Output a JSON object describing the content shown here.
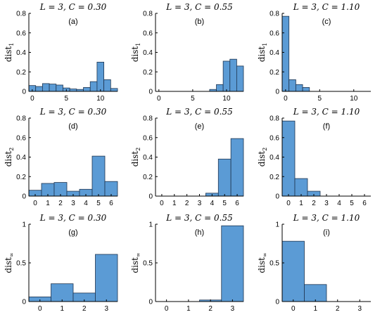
{
  "chart_data": [
    {
      "type": "bar",
      "panel_label": "(a)",
      "title": "L = 3, C = 0.30",
      "ylabel_main": "dist",
      "ylabel_sub": "1",
      "xlim": [
        -0.5,
        12.5
      ],
      "ylim": [
        0,
        0.8
      ],
      "xticks": [
        0,
        5,
        10
      ],
      "yticks": [
        0,
        0.2,
        0.4,
        0.6,
        0.8
      ],
      "x": [
        0,
        1,
        2,
        3,
        4,
        5,
        6,
        7,
        8,
        9,
        10,
        11,
        12
      ],
      "values": [
        0.06,
        0.05,
        0.08,
        0.075,
        0.065,
        0.035,
        0.025,
        0.02,
        0.04,
        0.1,
        0.3,
        0.12,
        0.03
      ]
    },
    {
      "type": "bar",
      "panel_label": "(b)",
      "title": "L = 3, C = 0.55",
      "ylabel_main": "dist",
      "ylabel_sub": "1",
      "xlim": [
        -0.5,
        12.5
      ],
      "ylim": [
        0,
        0.8
      ],
      "xticks": [
        0,
        5,
        10
      ],
      "yticks": [
        0,
        0.2,
        0.4,
        0.6,
        0.8
      ],
      "x": [
        0,
        1,
        2,
        3,
        4,
        5,
        6,
        7,
        8,
        9,
        10,
        11,
        12
      ],
      "values": [
        0,
        0,
        0,
        0,
        0,
        0,
        0,
        0,
        0.02,
        0.07,
        0.31,
        0.33,
        0.26
      ]
    },
    {
      "type": "bar",
      "panel_label": "(c)",
      "title": "L = 3, C = 1.10",
      "ylabel_main": "dist",
      "ylabel_sub": "1",
      "xlim": [
        -0.5,
        12.5
      ],
      "ylim": [
        0,
        0.8
      ],
      "xticks": [
        0,
        5,
        10
      ],
      "yticks": [
        0,
        0.2,
        0.4,
        0.6,
        0.8
      ],
      "x": [
        0,
        1,
        2,
        3,
        4,
        5,
        6,
        7,
        8,
        9,
        10,
        11,
        12
      ],
      "values": [
        0.77,
        0.12,
        0.07,
        0.04,
        0,
        0,
        0,
        0,
        0,
        0,
        0,
        0,
        0
      ]
    },
    {
      "type": "bar",
      "panel_label": "(d)",
      "title": "L = 3, C = 0.30",
      "ylabel_main": "dist",
      "ylabel_sub": "2",
      "xlim": [
        -0.5,
        6.5
      ],
      "ylim": [
        0,
        0.8
      ],
      "xticks": [
        0,
        1,
        2,
        3,
        4,
        5,
        6
      ],
      "yticks": [
        0,
        0.2,
        0.4,
        0.6,
        0.8
      ],
      "x": [
        0,
        1,
        2,
        3,
        4,
        5,
        6
      ],
      "values": [
        0.06,
        0.13,
        0.14,
        0.05,
        0.07,
        0.41,
        0.15
      ]
    },
    {
      "type": "bar",
      "panel_label": "(e)",
      "title": "L = 3, C = 0.55",
      "ylabel_main": "dist",
      "ylabel_sub": "2",
      "xlim": [
        -0.5,
        6.5
      ],
      "ylim": [
        0,
        0.8
      ],
      "xticks": [
        0,
        1,
        2,
        3,
        4,
        5,
        6
      ],
      "yticks": [
        0,
        0.2,
        0.4,
        0.6,
        0.8
      ],
      "x": [
        0,
        1,
        2,
        3,
        4,
        5,
        6
      ],
      "values": [
        0,
        0,
        0,
        0,
        0.03,
        0.38,
        0.59
      ]
    },
    {
      "type": "bar",
      "panel_label": "(f)",
      "title": "L = 3, C = 1.10",
      "ylabel_main": "dist",
      "ylabel_sub": "2",
      "xlim": [
        -0.5,
        6.5
      ],
      "ylim": [
        0,
        0.8
      ],
      "xticks": [
        0,
        1,
        2,
        3,
        4,
        5,
        6
      ],
      "yticks": [
        0,
        0.2,
        0.4,
        0.6,
        0.8
      ],
      "x": [
        0,
        1,
        2,
        3,
        4,
        5,
        6
      ],
      "values": [
        0.77,
        0.18,
        0.05,
        0,
        0,
        0,
        0
      ]
    },
    {
      "type": "bar",
      "panel_label": "(g)",
      "title": "L = 3, C = 0.30",
      "ylabel_main": "dist",
      "ylabel_sub": "∞",
      "xlim": [
        -0.5,
        3.5
      ],
      "ylim": [
        0,
        1
      ],
      "xticks": [
        0,
        1,
        2,
        3
      ],
      "yticks": [
        0,
        0.5,
        1
      ],
      "x": [
        0,
        1,
        2,
        3
      ],
      "values": [
        0.06,
        0.23,
        0.11,
        0.61
      ]
    },
    {
      "type": "bar",
      "panel_label": "(h)",
      "title": "L = 3, C = 0.55",
      "ylabel_main": "dist",
      "ylabel_sub": "∞",
      "xlim": [
        -0.5,
        3.5
      ],
      "ylim": [
        0,
        1
      ],
      "xticks": [
        0,
        1,
        2,
        3
      ],
      "yticks": [
        0,
        0.5,
        1
      ],
      "x": [
        0,
        1,
        2,
        3
      ],
      "values": [
        0,
        0,
        0.02,
        0.98
      ]
    },
    {
      "type": "bar",
      "panel_label": "(i)",
      "title": "L = 3, C = 1.10",
      "ylabel_main": "dist",
      "ylabel_sub": "∞",
      "xlim": [
        -0.5,
        3.5
      ],
      "ylim": [
        0,
        1
      ],
      "xticks": [
        0,
        1,
        2,
        3
      ],
      "yticks": [
        0,
        0.5,
        1
      ],
      "x": [
        0,
        1,
        2,
        3
      ],
      "values": [
        0.78,
        0.22,
        0,
        0
      ]
    }
  ],
  "colors": {
    "bar_fill": "#5b9bd5",
    "bar_edge": "#1f3550"
  }
}
